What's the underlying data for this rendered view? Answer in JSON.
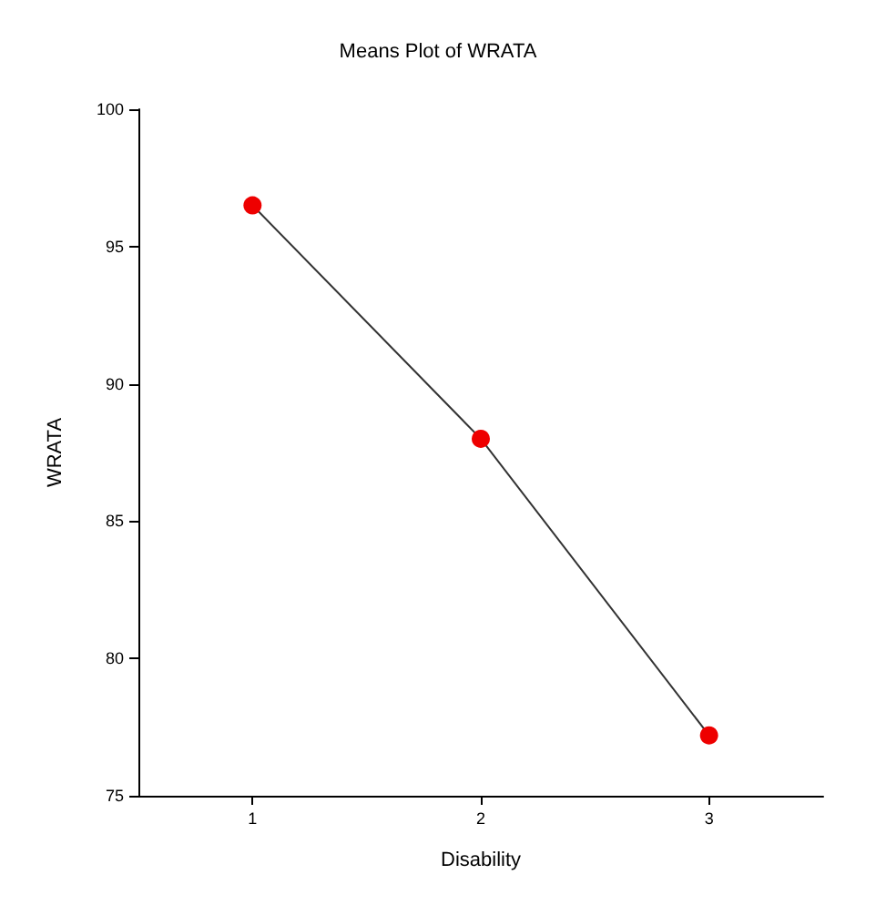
{
  "chart_data": {
    "type": "line",
    "title": "Means Plot of WRATA",
    "xlabel": "Disability",
    "ylabel": "WRATA",
    "categories": [
      "1",
      "2",
      "3"
    ],
    "series": [
      {
        "color": "#ee0000",
        "values": [
          96.5,
          88.0,
          77.2
        ]
      }
    ],
    "ylim": [
      75,
      100
    ],
    "yticks": [
      75,
      80,
      85,
      90,
      95,
      100
    ],
    "grid": false,
    "marker": "circle",
    "line_style": "solid"
  }
}
